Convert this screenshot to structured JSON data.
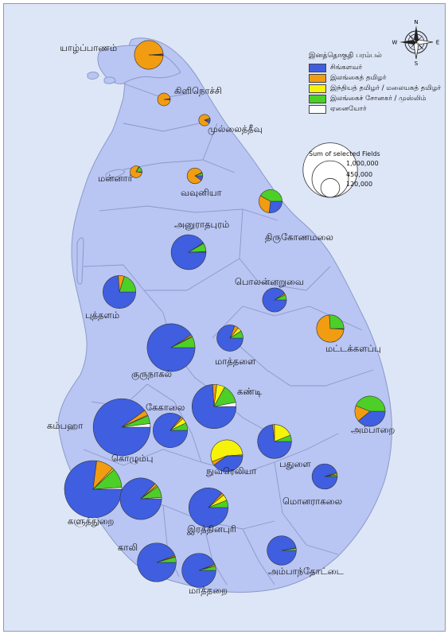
{
  "colors": {
    "water": "#dde6f7",
    "land": "#b9c5f2",
    "boundary": "#8d98c9",
    "sinhala": "#3f5fe0",
    "sl_tamil": "#f29c12",
    "indian_tamil": "#f6f20a",
    "moor": "#4ccf27",
    "other": "#ffffff"
  },
  "legend": {
    "title": "இனத்தொகுதி பரம்பல்",
    "items": [
      {
        "key": "sinhala",
        "label": "சிங்களவர்"
      },
      {
        "key": "sl_tamil",
        "label": "இலங்கைத் தமிழர்"
      },
      {
        "key": "indian_tamil",
        "label": "இந்தியத் தமிழர் / மலையகத் தமிழர்"
      },
      {
        "key": "moor",
        "label": "இலங்கைச் சோனகர் / முஸ்லிம்"
      },
      {
        "key": "other",
        "label": "ஏனையோர்"
      }
    ],
    "size_title": "Sum of selected Fields",
    "size_values": [
      "1,000,000",
      "450,000",
      "120,000"
    ]
  },
  "compass": {
    "n": "N",
    "s": "S",
    "e": "E",
    "w": "W"
  },
  "districts": [
    {
      "name": "யாழ்ப்பாணம்",
      "pop": 584000,
      "shares": {
        "sinhala": 0.01,
        "sl_tamil": 0.98,
        "indian_tamil": 0,
        "moor": 0.005,
        "other": 0.005
      }
    },
    {
      "name": "கிளிநொச்சி",
      "pop": 113000,
      "shares": {
        "sinhala": 0.01,
        "sl_tamil": 0.97,
        "indian_tamil": 0.01,
        "moor": 0.01,
        "other": 0
      }
    },
    {
      "name": "முல்லைத்தீவு",
      "pop": 92000,
      "shares": {
        "sinhala": 0.09,
        "sl_tamil": 0.86,
        "indian_tamil": 0.01,
        "moor": 0.04,
        "other": 0
      }
    },
    {
      "name": "மன்னார்",
      "pop": 99000,
      "shares": {
        "sinhala": 0.02,
        "sl_tamil": 0.81,
        "indian_tamil": 0.01,
        "moor": 0.16,
        "other": 0
      }
    },
    {
      "name": "வவுனியா",
      "pop": 172000,
      "shares": {
        "sinhala": 0.1,
        "sl_tamil": 0.83,
        "indian_tamil": 0.01,
        "moor": 0.06,
        "other": 0
      }
    },
    {
      "name": "திருகோணமலை",
      "pop": 379000,
      "shares": {
        "sinhala": 0.27,
        "sl_tamil": 0.31,
        "indian_tamil": 0,
        "moor": 0.42,
        "other": 0
      }
    },
    {
      "name": "அனுராதபுரம்",
      "pop": 856000,
      "shares": {
        "sinhala": 0.91,
        "sl_tamil": 0.006,
        "indian_tamil": 0,
        "moor": 0.08,
        "other": 0.004
      }
    },
    {
      "name": "பொலன்னறுவை",
      "pop": 403000,
      "shares": {
        "sinhala": 0.91,
        "sl_tamil": 0.02,
        "indian_tamil": 0,
        "moor": 0.07,
        "other": 0
      }
    },
    {
      "name": "புத்தளம்",
      "pop": 760000,
      "shares": {
        "sinhala": 0.74,
        "sl_tamil": 0.06,
        "indian_tamil": 0,
        "moor": 0.2,
        "other": 0
      }
    },
    {
      "name": "மட்டக்களப்பு",
      "pop": 526000,
      "shares": {
        "sinhala": 0.01,
        "sl_tamil": 0.73,
        "indian_tamil": 0,
        "moor": 0.26,
        "other": 0
      }
    },
    {
      "name": "குருநாகல்",
      "pop": 1611000,
      "shares": {
        "sinhala": 0.91,
        "sl_tamil": 0.01,
        "indian_tamil": 0.005,
        "moor": 0.075,
        "other": 0
      }
    },
    {
      "name": "மாத்தளை",
      "pop": 482000,
      "shares": {
        "sinhala": 0.81,
        "sl_tamil": 0.05,
        "indian_tamil": 0.05,
        "moor": 0.09,
        "other": 0
      }
    },
    {
      "name": "கண்டி",
      "pop": 1370000,
      "shares": {
        "sinhala": 0.74,
        "sl_tamil": 0.03,
        "indian_tamil": 0.06,
        "moor": 0.14,
        "other": 0.03
      }
    },
    {
      "name": "அம்பாறை",
      "pop": 649000,
      "shares": {
        "sinhala": 0.39,
        "sl_tamil": 0.17,
        "indian_tamil": 0,
        "moor": 0.44,
        "other": 0
      }
    },
    {
      "name": "கேகாலை",
      "pop": 837000,
      "shares": {
        "sinhala": 0.86,
        "sl_tamil": 0.02,
        "indian_tamil": 0.05,
        "moor": 0.07,
        "other": 0
      }
    },
    {
      "name": "கம்பஹா",
      "pop": 2294000,
      "shares": {
        "sinhala": 0.9,
        "sl_tamil": 0.03,
        "indian_tamil": 0.005,
        "moor": 0.045,
        "other": 0.02
      }
    },
    {
      "name": "நுவரெலியா",
      "pop": 712000,
      "shares": {
        "sinhala": 0.4,
        "sl_tamil": 0.04,
        "indian_tamil": 0.55,
        "moor": 0.01,
        "other": 0
      }
    },
    {
      "name": "பதுளை",
      "pop": 811000,
      "shares": {
        "sinhala": 0.73,
        "sl_tamil": 0.02,
        "indian_tamil": 0.19,
        "moor": 0.06,
        "other": 0
      }
    },
    {
      "name": "கொழும்பு",
      "pop": 2310000,
      "shares": {
        "sinhala": 0.77,
        "sl_tamil": 0.1,
        "indian_tamil": 0.01,
        "moor": 0.11,
        "other": 0.01
      }
    },
    {
      "name": "மொனராகலை",
      "pop": 449000,
      "shares": {
        "sinhala": 0.95,
        "sl_tamil": 0.015,
        "indian_tamil": 0.015,
        "moor": 0.02,
        "other": 0
      }
    },
    {
      "name": "களுத்துறை",
      "pop": 1217000,
      "shares": {
        "sinhala": 0.87,
        "sl_tamil": 0.02,
        "indian_tamil": 0.01,
        "moor": 0.09,
        "other": 0.01
      }
    },
    {
      "name": "இரத்தினபுரி",
      "pop": 1088000,
      "shares": {
        "sinhala": 0.87,
        "sl_tamil": 0.02,
        "indian_tamil": 0.05,
        "moor": 0.06,
        "other": 0
      }
    },
    {
      "name": "அம்பாந்தோட்டை",
      "pop": 599000,
      "shares": {
        "sinhala": 0.97,
        "sl_tamil": 0.005,
        "indian_tamil": 0,
        "moor": 0.025,
        "other": 0
      }
    },
    {
      "name": "காலி",
      "pop": 1058000,
      "shares": {
        "sinhala": 0.94,
        "sl_tamil": 0.01,
        "indian_tamil": 0.005,
        "moor": 0.045,
        "other": 0
      }
    },
    {
      "name": "மாத்தறை",
      "pop": 814000,
      "shares": {
        "sinhala": 0.94,
        "sl_tamil": 0.01,
        "indian_tamil": 0.01,
        "moor": 0.04,
        "other": 0
      }
    }
  ]
}
